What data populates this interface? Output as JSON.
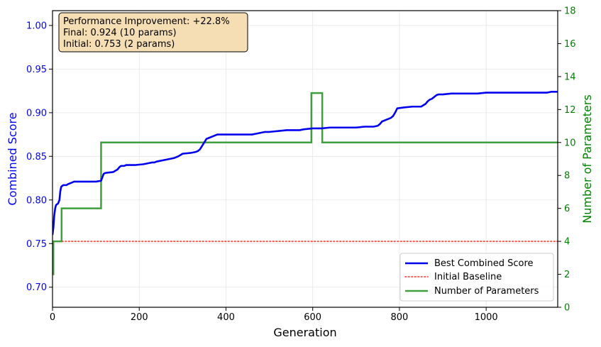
{
  "chart_data": {
    "type": "line",
    "xlabel": "Generation",
    "ylabel_left": "Combined Score",
    "ylabel_right": "Number of Parameters",
    "xlim": [
      0,
      1165
    ],
    "ylim_left": [
      0.677,
      1.017
    ],
    "ylim_right": [
      0,
      18
    ],
    "x_ticks": [
      0,
      200,
      400,
      600,
      800,
      1000
    ],
    "y_left_ticks": [
      0.7,
      0.75,
      0.8,
      0.85,
      0.9,
      0.95,
      1.0
    ],
    "y_left_tick_labels": [
      "0.70",
      "0.75",
      "0.80",
      "0.85",
      "0.90",
      "0.95",
      "1.00"
    ],
    "y_right_ticks": [
      0,
      2,
      4,
      6,
      8,
      10,
      12,
      14,
      16,
      18
    ],
    "grid": true,
    "legend_position": "lower-right",
    "colors": {
      "score": "#0000ee",
      "baseline": "#ff4a3a",
      "params": "#3da03d",
      "left_axis": "#0000ff",
      "right_axis": "#008000",
      "annotation_bg": "#f5deb3"
    },
    "annotation": {
      "lines": [
        "Performance Improvement: +22.8%",
        "Final: 0.924 (10 params)",
        "Initial: 0.753 (2 params)"
      ]
    },
    "series": [
      {
        "name": "Best Combined Score",
        "axis": "left",
        "style": "solid",
        "x": [
          0,
          2,
          4,
          6,
          8,
          10,
          13,
          16,
          18,
          20,
          22,
          25,
          28,
          32,
          35,
          40,
          45,
          50,
          60,
          80,
          100,
          112,
          115,
          118,
          122,
          140,
          150,
          155,
          158,
          165,
          170,
          190,
          210,
          220,
          230,
          235,
          240,
          250,
          260,
          270,
          280,
          290,
          300,
          320,
          330,
          335,
          340,
          345,
          350,
          355,
          360,
          370,
          380,
          400,
          420,
          440,
          460,
          470,
          480,
          490,
          500,
          520,
          540,
          560,
          570,
          580,
          600,
          620,
          640,
          650,
          680,
          700,
          720,
          740,
          750,
          755,
          760,
          770,
          780,
          785,
          790,
          795,
          810,
          830,
          850,
          860,
          865,
          870,
          875,
          880,
          885,
          890,
          900,
          920,
          940,
          960,
          980,
          1000,
          1020,
          1040,
          1060,
          1080,
          1100,
          1120,
          1140,
          1150,
          1160,
          1165
        ],
        "y": [
          0.76,
          0.768,
          0.782,
          0.79,
          0.794,
          0.795,
          0.796,
          0.8,
          0.81,
          0.815,
          0.816,
          0.817,
          0.817,
          0.817,
          0.818,
          0.819,
          0.82,
          0.821,
          0.821,
          0.821,
          0.821,
          0.822,
          0.826,
          0.83,
          0.831,
          0.832,
          0.835,
          0.838,
          0.839,
          0.839,
          0.84,
          0.84,
          0.841,
          0.842,
          0.843,
          0.843,
          0.844,
          0.845,
          0.846,
          0.847,
          0.848,
          0.85,
          0.853,
          0.854,
          0.855,
          0.856,
          0.858,
          0.862,
          0.866,
          0.87,
          0.871,
          0.873,
          0.875,
          0.875,
          0.875,
          0.875,
          0.875,
          0.876,
          0.877,
          0.878,
          0.878,
          0.879,
          0.88,
          0.88,
          0.88,
          0.881,
          0.882,
          0.882,
          0.883,
          0.883,
          0.883,
          0.883,
          0.884,
          0.884,
          0.885,
          0.887,
          0.89,
          0.892,
          0.894,
          0.896,
          0.9,
          0.905,
          0.906,
          0.907,
          0.907,
          0.91,
          0.913,
          0.915,
          0.916,
          0.918,
          0.92,
          0.921,
          0.921,
          0.922,
          0.922,
          0.922,
          0.922,
          0.923,
          0.923,
          0.923,
          0.923,
          0.923,
          0.923,
          0.923,
          0.923,
          0.924,
          0.924,
          0.924
        ]
      },
      {
        "name": "Initial Baseline",
        "axis": "left",
        "style": "dotted",
        "x": [
          0,
          1165
        ],
        "y": [
          0.7525,
          0.7525
        ]
      },
      {
        "name": "Number of Parameters",
        "axis": "right",
        "style": "step",
        "x": [
          0,
          2,
          2,
          21,
          21,
          112,
          112,
          597,
          597,
          622,
          622,
          1165
        ],
        "y": [
          2,
          2,
          4,
          4,
          6,
          6,
          10,
          10,
          13,
          13,
          10,
          10
        ]
      }
    ]
  }
}
